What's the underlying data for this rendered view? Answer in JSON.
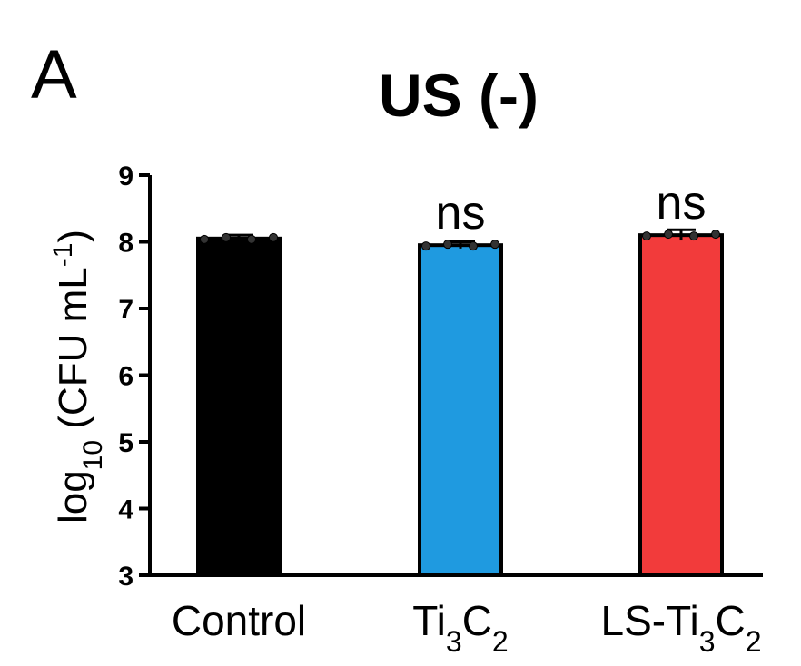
{
  "panel_label": "A",
  "chart_data": {
    "type": "bar",
    "title": "US (-)",
    "ylabel": {
      "prefix": "log",
      "prefix_sub": "10",
      "main": " (CFU mL",
      "sup": "-1",
      "suffix": ")"
    },
    "ylim": [
      3,
      9
    ],
    "yticks": [
      3,
      4,
      5,
      6,
      7,
      8,
      9
    ],
    "categories": [
      {
        "parts": [
          {
            "t": "Control",
            "s": ""
          }
        ]
      },
      {
        "parts": [
          {
            "t": "Ti",
            "s": ""
          },
          {
            "t": "3",
            "s": "sub"
          },
          {
            "t": "C",
            "s": ""
          },
          {
            "t": "2",
            "s": "sub"
          }
        ]
      },
      {
        "parts": [
          {
            "t": "LS-Ti",
            "s": ""
          },
          {
            "t": "3",
            "s": "sub"
          },
          {
            "t": "C",
            "s": ""
          },
          {
            "t": "2",
            "s": "sub"
          }
        ]
      }
    ],
    "values": [
      8.05,
      7.95,
      8.1
    ],
    "errors": [
      0.05,
      0.05,
      0.08
    ],
    "colors": [
      "#000000",
      "#1f9ae0",
      "#f23b3b"
    ],
    "annotations": [
      "",
      "ns",
      "ns"
    ],
    "grid": false,
    "legend": "none"
  }
}
